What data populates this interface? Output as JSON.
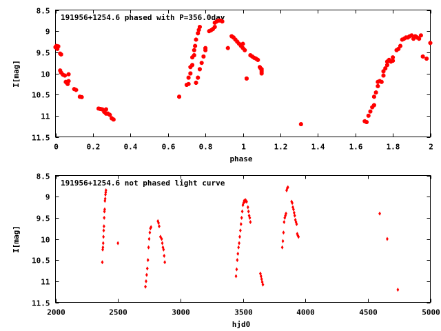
{
  "chart_data": [
    {
      "type": "scatter",
      "title": "191956+1254.6 phased with P=356.0day",
      "xlabel": "phase",
      "ylabel": "I[mag]",
      "xlim": [
        0,
        2
      ],
      "ylim": [
        11.5,
        8.5
      ],
      "y_inverted": true,
      "xticks": [
        "0",
        "0.2",
        "0.4",
        "0.6",
        "0.8",
        "1",
        "1.2",
        "1.4",
        "1.6",
        "1.8",
        "2"
      ],
      "yticks": [
        "8.5",
        "9",
        "9.5",
        "10",
        "10.5",
        "11",
        "11.5"
      ],
      "grid": false,
      "marker_color": "#ff0000",
      "marker": "star",
      "points": [
        [
          0.0,
          9.38
        ],
        [
          0.005,
          9.35
        ],
        [
          0.01,
          9.42
        ],
        [
          0.015,
          9.36
        ],
        [
          0.025,
          9.53
        ],
        [
          0.03,
          9.55
        ],
        [
          0.025,
          9.93
        ],
        [
          0.03,
          9.98
        ],
        [
          0.04,
          10.03
        ],
        [
          0.05,
          10.05
        ],
        [
          0.055,
          10.2
        ],
        [
          0.06,
          10.22
        ],
        [
          0.07,
          10.18
        ],
        [
          0.065,
          10.25
        ],
        [
          0.07,
          10.02
        ],
        [
          0.1,
          10.37
        ],
        [
          0.11,
          10.39
        ],
        [
          0.13,
          10.55
        ],
        [
          0.14,
          10.56
        ],
        [
          0.23,
          10.83
        ],
        [
          0.24,
          10.84
        ],
        [
          0.25,
          10.85
        ],
        [
          0.26,
          10.91
        ],
        [
          0.27,
          10.95
        ],
        [
          0.28,
          10.95
        ],
        [
          0.27,
          10.85
        ],
        [
          0.29,
          10.98
        ],
        [
          0.3,
          11.06
        ],
        [
          0.31,
          11.09
        ],
        [
          0.66,
          10.55
        ],
        [
          0.7,
          10.27
        ],
        [
          0.71,
          10.25
        ],
        [
          0.71,
          10.1
        ],
        [
          0.72,
          10.0
        ],
        [
          0.72,
          9.85
        ],
        [
          0.73,
          9.8
        ],
        [
          0.73,
          9.62
        ],
        [
          0.74,
          9.57
        ],
        [
          0.74,
          9.45
        ],
        [
          0.745,
          9.35
        ],
        [
          0.75,
          9.2
        ],
        [
          0.76,
          9.05
        ],
        [
          0.765,
          8.97
        ],
        [
          0.77,
          8.9
        ],
        [
          0.75,
          10.22
        ],
        [
          0.76,
          10.1
        ],
        [
          0.77,
          9.9
        ],
        [
          0.78,
          9.75
        ],
        [
          0.79,
          9.6
        ],
        [
          0.8,
          9.45
        ],
        [
          0.8,
          9.4
        ],
        [
          0.82,
          9.0
        ],
        [
          0.83,
          8.98
        ],
        [
          0.84,
          8.95
        ],
        [
          0.85,
          8.9
        ],
        [
          0.85,
          8.8
        ],
        [
          0.86,
          8.77
        ],
        [
          0.87,
          8.75
        ],
        [
          0.88,
          8.75
        ],
        [
          0.89,
          8.77
        ],
        [
          0.92,
          9.4
        ],
        [
          0.94,
          9.12
        ],
        [
          0.95,
          9.15
        ],
        [
          0.96,
          9.2
        ],
        [
          0.97,
          9.25
        ],
        [
          0.98,
          9.3
        ],
        [
          0.99,
          9.35
        ],
        [
          1.0,
          9.4
        ],
        [
          1.01,
          9.45
        ],
        [
          1.0,
          9.3
        ],
        [
          1.02,
          10.12
        ],
        [
          1.04,
          9.57
        ],
        [
          1.05,
          9.6
        ],
        [
          1.06,
          9.63
        ],
        [
          1.07,
          9.65
        ],
        [
          1.08,
          9.68
        ],
        [
          1.09,
          9.85
        ],
        [
          1.1,
          9.9
        ],
        [
          1.1,
          9.95
        ],
        [
          1.1,
          10.0
        ],
        [
          1.095,
          9.88
        ],
        [
          1.31,
          11.2
        ],
        [
          1.65,
          11.13
        ],
        [
          1.66,
          11.15
        ],
        [
          1.67,
          11.0
        ],
        [
          1.68,
          10.9
        ],
        [
          1.69,
          10.8
        ],
        [
          1.7,
          10.75
        ],
        [
          1.7,
          10.55
        ],
        [
          1.71,
          10.45
        ],
        [
          1.72,
          10.3
        ],
        [
          1.72,
          10.2
        ],
        [
          1.73,
          10.18
        ],
        [
          1.74,
          10.2
        ],
        [
          1.75,
          10.05
        ],
        [
          1.75,
          9.95
        ],
        [
          1.76,
          9.88
        ],
        [
          1.77,
          9.8
        ],
        [
          1.77,
          9.72
        ],
        [
          1.78,
          9.68
        ],
        [
          1.79,
          9.72
        ],
        [
          1.8,
          9.7
        ],
        [
          1.8,
          9.62
        ],
        [
          1.82,
          9.45
        ],
        [
          1.83,
          9.42
        ],
        [
          1.84,
          9.35
        ],
        [
          1.85,
          9.2
        ],
        [
          1.86,
          9.18
        ],
        [
          1.87,
          9.15
        ],
        [
          1.88,
          9.15
        ],
        [
          1.89,
          9.12
        ],
        [
          1.9,
          9.1
        ],
        [
          1.91,
          9.18
        ],
        [
          1.92,
          9.12
        ],
        [
          1.93,
          9.15
        ],
        [
          1.94,
          9.18
        ],
        [
          1.95,
          9.1
        ],
        [
          1.96,
          9.6
        ],
        [
          1.98,
          9.65
        ],
        [
          2.0,
          9.28
        ]
      ]
    },
    {
      "type": "scatter",
      "title": "191956+1254.6 not phased light curve",
      "xlabel": "hjd0",
      "ylabel": "I[mag]",
      "xlim": [
        2000,
        5000
      ],
      "ylim": [
        11.5,
        8.5
      ],
      "y_inverted": true,
      "xticks": [
        "2000",
        "2500",
        "3000",
        "3500",
        "4000",
        "4500",
        "5000"
      ],
      "yticks": [
        "8.5",
        "9",
        "9.5",
        "10",
        "10.5",
        "11",
        "11.5"
      ],
      "grid": false,
      "marker_color": "#ff0000",
      "marker": "diamond",
      "points": [
        [
          2375,
          10.55
        ],
        [
          2378,
          10.25
        ],
        [
          2380,
          10.2
        ],
        [
          2382,
          10.1
        ],
        [
          2384,
          9.95
        ],
        [
          2386,
          9.8
        ],
        [
          2388,
          9.7
        ],
        [
          2390,
          9.5
        ],
        [
          2392,
          9.35
        ],
        [
          2394,
          9.3
        ],
        [
          2396,
          9.1
        ],
        [
          2398,
          9.05
        ],
        [
          2400,
          8.95
        ],
        [
          2402,
          8.9
        ],
        [
          2404,
          8.85
        ],
        [
          2500,
          10.1
        ],
        [
          2720,
          11.13
        ],
        [
          2725,
          11.0
        ],
        [
          2730,
          10.85
        ],
        [
          2735,
          10.7
        ],
        [
          2740,
          10.5
        ],
        [
          2745,
          10.2
        ],
        [
          2750,
          10.0
        ],
        [
          2755,
          9.85
        ],
        [
          2760,
          9.75
        ],
        [
          2765,
          9.72
        ],
        [
          2820,
          9.58
        ],
        [
          2825,
          9.62
        ],
        [
          2830,
          9.7
        ],
        [
          2840,
          9.95
        ],
        [
          2850,
          10.0
        ],
        [
          2855,
          10.1
        ],
        [
          2860,
          10.2
        ],
        [
          2865,
          10.25
        ],
        [
          2870,
          10.4
        ],
        [
          2875,
          10.55
        ],
        [
          3445,
          10.88
        ],
        [
          3450,
          10.72
        ],
        [
          3455,
          10.5
        ],
        [
          3460,
          10.35
        ],
        [
          3465,
          10.2
        ],
        [
          3470,
          10.1
        ],
        [
          3475,
          9.95
        ],
        [
          3480,
          9.8
        ],
        [
          3485,
          9.65
        ],
        [
          3490,
          9.5
        ],
        [
          3495,
          9.35
        ],
        [
          3500,
          9.2
        ],
        [
          3505,
          9.15
        ],
        [
          3510,
          9.1
        ],
        [
          3515,
          9.12
        ],
        [
          3520,
          9.08
        ],
        [
          3525,
          9.1
        ],
        [
          3530,
          9.12
        ],
        [
          3540,
          9.25
        ],
        [
          3545,
          9.35
        ],
        [
          3550,
          9.45
        ],
        [
          3555,
          9.5
        ],
        [
          3560,
          9.6
        ],
        [
          3640,
          10.82
        ],
        [
          3645,
          10.88
        ],
        [
          3650,
          10.95
        ],
        [
          3655,
          11.02
        ],
        [
          3660,
          11.08
        ],
        [
          3815,
          10.2
        ],
        [
          3820,
          10.05
        ],
        [
          3825,
          9.85
        ],
        [
          3830,
          9.6
        ],
        [
          3835,
          9.5
        ],
        [
          3840,
          9.45
        ],
        [
          3845,
          9.4
        ],
        [
          3850,
          8.85
        ],
        [
          3855,
          8.8
        ],
        [
          3860,
          8.78
        ],
        [
          3890,
          9.12
        ],
        [
          3895,
          9.15
        ],
        [
          3900,
          9.25
        ],
        [
          3905,
          9.3
        ],
        [
          3910,
          9.38
        ],
        [
          3915,
          9.45
        ],
        [
          3920,
          9.55
        ],
        [
          3925,
          9.6
        ],
        [
          3930,
          9.65
        ],
        [
          3935,
          9.88
        ],
        [
          3940,
          9.92
        ],
        [
          3945,
          9.95
        ],
        [
          4595,
          9.4
        ],
        [
          4655,
          10.0
        ],
        [
          4740,
          11.2
        ]
      ]
    }
  ]
}
